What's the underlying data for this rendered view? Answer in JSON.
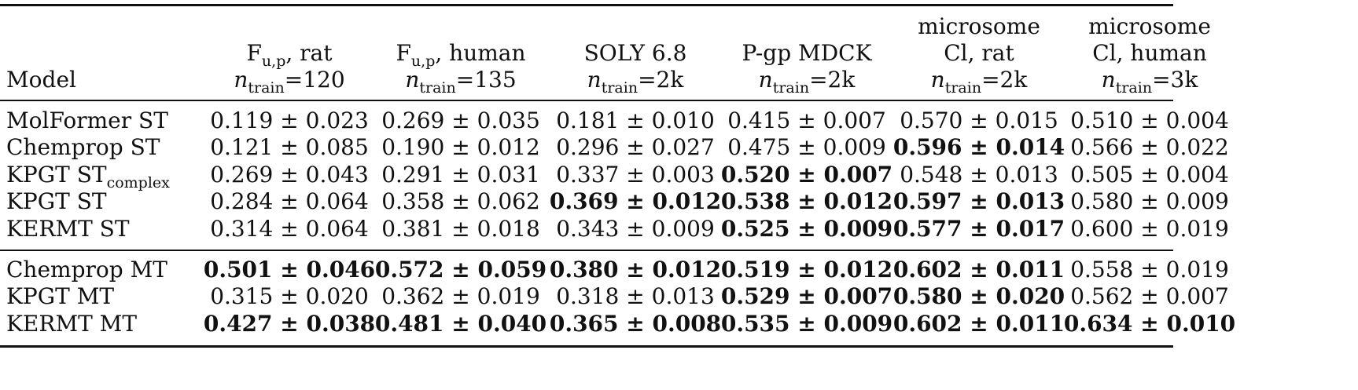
{
  "table": {
    "header": {
      "model_label": "Model",
      "columns": [
        {
          "line1": "",
          "line2_main": "F",
          "line2_sub": "u,p",
          "line2_rest": ", rat",
          "ntrain_var": "n",
          "ntrain_sub": "train",
          "ntrain_val": "=120"
        },
        {
          "line1": "",
          "line2_main": "F",
          "line2_sub": "u,p",
          "line2_rest": ", human",
          "ntrain_var": "n",
          "ntrain_sub": "train",
          "ntrain_val": "=135"
        },
        {
          "line1": "",
          "line2_main": "SOLY 6.8",
          "line2_sub": "",
          "line2_rest": "",
          "ntrain_var": "n",
          "ntrain_sub": "train",
          "ntrain_val": "=2k"
        },
        {
          "line1": "",
          "line2_main": "P-gp MDCK",
          "line2_sub": "",
          "line2_rest": "",
          "ntrain_var": "n",
          "ntrain_sub": "train",
          "ntrain_val": "=2k"
        },
        {
          "line1": "microsome",
          "line2_main": "Cl, rat",
          "line2_sub": "",
          "line2_rest": "",
          "ntrain_var": "n",
          "ntrain_sub": "train",
          "ntrain_val": "=2k"
        },
        {
          "line1": "microsome",
          "line2_main": "Cl, human",
          "line2_sub": "",
          "line2_rest": "",
          "ntrain_var": "n",
          "ntrain_sub": "train",
          "ntrain_val": "=3k"
        }
      ]
    },
    "groups": [
      {
        "rows": [
          {
            "model": "MolFormer ST",
            "model_sub": "",
            "cells": [
              {
                "v": "0.119 ± 0.023",
                "b": false
              },
              {
                "v": "0.269 ± 0.035",
                "b": false
              },
              {
                "v": "0.181 ± 0.010",
                "b": false
              },
              {
                "v": "0.415 ± 0.007",
                "b": false
              },
              {
                "v": "0.570 ± 0.015",
                "b": false
              },
              {
                "v": "0.510 ± 0.004",
                "b": false
              }
            ]
          },
          {
            "model": "Chemprop ST",
            "model_sub": "",
            "cells": [
              {
                "v": "0.121 ± 0.085",
                "b": false
              },
              {
                "v": "0.190 ± 0.012",
                "b": false
              },
              {
                "v": "0.296 ± 0.027",
                "b": false
              },
              {
                "v": "0.475 ± 0.009",
                "b": false
              },
              {
                "v": "0.596 ± 0.014",
                "b": true
              },
              {
                "v": "0.566 ± 0.022",
                "b": false
              }
            ]
          },
          {
            "model": "KPGT ST",
            "model_sub": "complex",
            "cells": [
              {
                "v": "0.269 ± 0.043",
                "b": false
              },
              {
                "v": "0.291 ± 0.031",
                "b": false
              },
              {
                "v": "0.337 ± 0.003",
                "b": false
              },
              {
                "v": "0.520 ± 0.007",
                "b": true
              },
              {
                "v": "0.548 ± 0.013",
                "b": false
              },
              {
                "v": "0.505 ± 0.004",
                "b": false
              }
            ]
          },
          {
            "model": "KPGT ST",
            "model_sub": "",
            "cells": [
              {
                "v": "0.284 ± 0.064",
                "b": false
              },
              {
                "v": "0.358 ± 0.062",
                "b": false
              },
              {
                "v": "0.369 ± 0.012",
                "b": true
              },
              {
                "v": "0.538 ± 0.012",
                "b": true
              },
              {
                "v": "0.597 ± 0.013",
                "b": true
              },
              {
                "v": "0.580 ± 0.009",
                "b": false
              }
            ]
          },
          {
            "model": "KERMT ST",
            "model_sub": "",
            "cells": [
              {
                "v": "0.314 ± 0.064",
                "b": false
              },
              {
                "v": "0.381 ± 0.018",
                "b": false
              },
              {
                "v": "0.343 ± 0.009",
                "b": false
              },
              {
                "v": "0.525 ± 0.009",
                "b": true
              },
              {
                "v": "0.577 ± 0.017",
                "b": true
              },
              {
                "v": "0.600 ± 0.019",
                "b": false
              }
            ]
          }
        ]
      },
      {
        "rows": [
          {
            "model": "Chemprop MT",
            "model_sub": "",
            "cells": [
              {
                "v": "0.501 ± 0.046",
                "b": true
              },
              {
                "v": "0.572 ± 0.059",
                "b": true
              },
              {
                "v": "0.380 ± 0.012",
                "b": true
              },
              {
                "v": "0.519 ± 0.012",
                "b": true
              },
              {
                "v": "0.602 ± 0.011",
                "b": true
              },
              {
                "v": "0.558 ± 0.019",
                "b": false
              }
            ]
          },
          {
            "model": "KPGT MT",
            "model_sub": "",
            "cells": [
              {
                "v": "0.315 ± 0.020",
                "b": false
              },
              {
                "v": "0.362 ± 0.019",
                "b": false
              },
              {
                "v": "0.318 ± 0.013",
                "b": false
              },
              {
                "v": "0.529 ± 0.007",
                "b": true
              },
              {
                "v": "0.580 ± 0.020",
                "b": true
              },
              {
                "v": "0.562 ± 0.007",
                "b": false
              }
            ]
          },
          {
            "model": "KERMT MT",
            "model_sub": "",
            "cells": [
              {
                "v": "0.427 ± 0.038",
                "b": true
              },
              {
                "v": "0.481 ± 0.040",
                "b": true
              },
              {
                "v": "0.365 ± 0.008",
                "b": true
              },
              {
                "v": "0.535 ± 0.009",
                "b": true
              },
              {
                "v": "0.602 ± 0.011",
                "b": true
              },
              {
                "v": "0.634 ± 0.010",
                "b": true
              }
            ]
          }
        ]
      }
    ]
  }
}
